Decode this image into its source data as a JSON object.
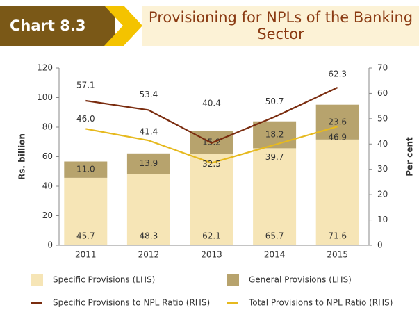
{
  "chart_data": {
    "type": "bar",
    "stacked": true,
    "chart_number": "Chart 8.3",
    "title": "Provisioning for NPLs of the Banking Sector",
    "y_label": "Rs. billion",
    "y2_label": "Per cent",
    "categories": [
      "2011",
      "2012",
      "2013",
      "2014",
      "2015"
    ],
    "ylim": [
      0,
      120
    ],
    "yticks": [
      0,
      20,
      40,
      60,
      80,
      100,
      120
    ],
    "y2lim": [
      0,
      70
    ],
    "y2ticks": [
      0,
      10,
      20,
      30,
      40,
      50,
      60,
      70
    ],
    "series": [
      {
        "name": "Specific Provisions (LHS)",
        "color": "#f6e5b6",
        "values": [
          45.7,
          48.3,
          62.1,
          65.7,
          71.6
        ]
      },
      {
        "name": "General Provisions (LHS)",
        "color": "#b7a36d",
        "values": [
          11.0,
          13.9,
          15.2,
          18.2,
          23.6
        ],
        "value_labels": [
          "11.0",
          "13.9",
          "15.2",
          "18.2",
          "23.6"
        ]
      },
      {
        "name": "Specific Provisions to NPL Ratio (RHS)",
        "type": "line",
        "axis": "y2",
        "color": "#7a2c0f",
        "values": [
          57.1,
          53.4,
          40.4,
          50.7,
          62.3
        ]
      },
      {
        "name": "Total Provisions to NPL Ratio (RHS)",
        "type": "line",
        "axis": "y2",
        "color": "#e6b91e",
        "values": [
          46.0,
          41.4,
          32.5,
          39.7,
          46.9
        ],
        "value_labels": [
          "46.0",
          "41.4",
          "32.5",
          "39.7",
          "46.9"
        ]
      }
    ]
  }
}
